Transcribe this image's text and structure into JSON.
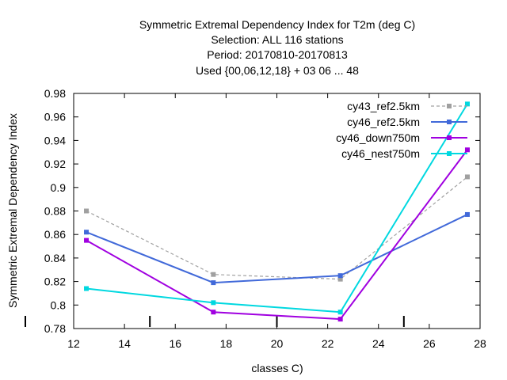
{
  "chart_data": {
    "type": "line",
    "title_lines": [
      "Symmetric Extremal Dependency Index  for T2m (deg C)",
      "Selection: ALL     116 stations",
      "Period: 20170810-20170813",
      "Used {00,06,12,18} + 03 06 ... 48"
    ],
    "xlabel": "classes C)",
    "ylabel": "Symmetric Extremal Dependency Index",
    "xlim": [
      12,
      28
    ],
    "ylim": [
      0.78,
      0.98
    ],
    "xticks": [
      12,
      14,
      16,
      18,
      20,
      22,
      24,
      26,
      28
    ],
    "yticks": [
      0.78,
      0.8,
      0.82,
      0.84,
      0.86,
      0.88,
      0.9,
      0.92,
      0.94,
      0.96,
      0.98
    ],
    "xtick_labels": [
      "12",
      "14",
      "16",
      "18",
      "20",
      "22",
      "24",
      "26",
      "28"
    ],
    "ytick_labels": [
      "0.78",
      "0.8",
      "0.82",
      "0.84",
      "0.86",
      "0.88",
      "0.9",
      "0.92",
      "0.94",
      "0.96",
      "0.98"
    ],
    "class_bounds": [
      15,
      20,
      25
    ],
    "x": [
      12.5,
      17.5,
      22.5,
      27.5
    ],
    "legend_position": "top-right",
    "grid": false,
    "series": [
      {
        "name": "cy43_ref2.5km",
        "color": "#a0a0a0",
        "dashed": true,
        "values": [
          0.88,
          0.826,
          0.822,
          0.909
        ]
      },
      {
        "name": "cy46_ref2.5km",
        "color": "#4169d9",
        "dashed": false,
        "values": [
          0.862,
          0.819,
          0.825,
          0.877
        ]
      },
      {
        "name": "cy46_down750m",
        "color": "#a000e0",
        "dashed": false,
        "values": [
          0.855,
          0.794,
          0.788,
          0.932
        ]
      },
      {
        "name": "cy46_nest750m",
        "color": "#00d8e0",
        "dashed": false,
        "values": [
          0.814,
          0.802,
          0.794,
          0.971
        ]
      }
    ]
  }
}
